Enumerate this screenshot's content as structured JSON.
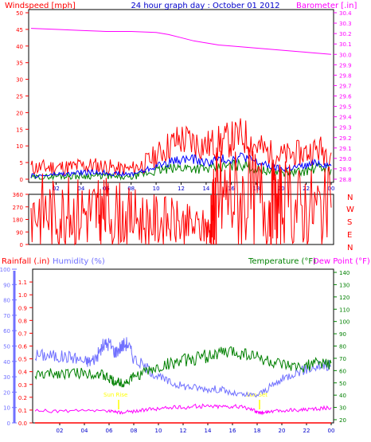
{
  "header": {
    "windspeed_label": "Windspeed [mph]",
    "graph_title": "24 hour graph day : October 01 2012",
    "barometer_label": "Barometer [.in]"
  },
  "middle": {
    "compass_letters": [
      "N",
      "W",
      "S",
      "E",
      "N"
    ]
  },
  "bottom": {
    "rainfall_label": "Rainfall (.in)",
    "humidity_label": "Humidity (%)",
    "temperature_label": "Temperature (°F)",
    "dewpoint_label": "Dew Point (°F)",
    "sun_rise_label": "Sun Rise",
    "sun_set_label": "Sun Set"
  },
  "colors": {
    "frame": "#000000",
    "wind_gust": "#ff0000",
    "wind_avg": "#008000",
    "wind_dir": "#ff0000",
    "barometer": "#ff00ff",
    "title": "#0000cc",
    "humidity": "#7070ff",
    "temperature": "#008000",
    "rain": "#ff0000",
    "dewpoint": "#ff00ff",
    "sun": "#ffff00"
  },
  "chart_data": [
    {
      "type": "line",
      "title": "24 hour graph day : October 01 2012",
      "x_ticks": [
        "02",
        "04",
        "06",
        "08",
        "10",
        "12",
        "14",
        "16",
        "18",
        "20",
        "22",
        "00"
      ],
      "left_axis": {
        "label": "Windspeed [mph]",
        "range": [
          0,
          50
        ],
        "ticks": [
          0,
          5,
          10,
          15,
          20,
          25,
          30,
          35,
          40,
          45,
          50
        ]
      },
      "right_axis": {
        "label": "Barometer [.in]",
        "range": [
          28.8,
          30.4
        ],
        "ticks": [
          28.8,
          28.9,
          29.0,
          29.1,
          29.2,
          29.3,
          29.4,
          29.5,
          29.6,
          29.7,
          29.8,
          29.9,
          30.0,
          30.1,
          30.2,
          30.3,
          30.4
        ]
      },
      "series": [
        {
          "name": "Windspeed [mph]",
          "axis": "left",
          "color": "#ff0000",
          "x": [
            0,
            1,
            2,
            3,
            4,
            5,
            6,
            7,
            8,
            9,
            10,
            11,
            12,
            13,
            14,
            15,
            16,
            17,
            18,
            19,
            20,
            21,
            22,
            23,
            24
          ],
          "y": [
            3.5,
            3.5,
            3.6,
            3.5,
            4,
            4,
            3.8,
            3,
            3,
            4.5,
            7,
            10,
            12,
            11,
            10,
            11,
            12,
            13,
            10,
            8,
            7,
            7.5,
            8,
            9,
            8
          ]
        },
        {
          "x": [
            0,
            1,
            2,
            3,
            4,
            5,
            6,
            7,
            8,
            9,
            10,
            11,
            12,
            13,
            14,
            15,
            16,
            17,
            18,
            19,
            20,
            21,
            22,
            23,
            24
          ],
          "y": [
            1,
            1,
            1.5,
            1.5,
            2,
            2,
            2,
            1.5,
            1.5,
            2.5,
            4,
            5,
            6,
            6,
            5,
            6,
            6,
            7,
            5,
            4,
            3,
            3.5,
            4,
            5,
            4
          ]
        },
        {
          "x": [
            0,
            1,
            2,
            3,
            4,
            5,
            6,
            7,
            8,
            9,
            10,
            11,
            12,
            13,
            14,
            15,
            16,
            17,
            18,
            19,
            20,
            21,
            22,
            23,
            24
          ],
          "y": [
            0.5,
            0.5,
            1,
            1,
            1,
            1,
            1,
            0.5,
            0.5,
            1.5,
            2.5,
            3,
            3.5,
            3.5,
            3,
            3.5,
            4,
            4.5,
            3,
            2.5,
            2,
            2,
            2.5,
            3.5,
            3
          ]
        },
        {
          "name": "Barometer [.in]",
          "axis": "right",
          "color": "#ff00ff",
          "x": [
            0,
            2,
            4,
            6,
            8,
            10,
            11,
            12,
            13,
            14,
            15,
            16,
            18,
            20,
            22,
            24
          ],
          "y": [
            30.25,
            30.24,
            30.23,
            30.22,
            30.22,
            30.21,
            30.19,
            30.16,
            30.13,
            30.11,
            30.09,
            30.08,
            30.06,
            30.04,
            30.02,
            30.0
          ]
        }
      ]
    },
    {
      "type": "line",
      "y_ticks": [
        0,
        90,
        180,
        270,
        360
      ],
      "right_labels": [
        "N",
        "W",
        "S",
        "E",
        "N"
      ],
      "range": [
        0,
        360
      ],
      "series": [
        {
          "color": "#ff0000",
          "x": [
            0,
            1,
            2,
            3,
            4,
            5,
            5.5,
            6,
            7,
            8,
            9,
            10,
            11,
            12,
            13,
            14,
            14.4,
            14.6,
            15,
            16,
            17,
            18,
            19,
            19.5,
            20,
            21,
            22,
            23,
            24
          ],
          "y": [
            250,
            250,
            225,
            230,
            240,
            240,
            210,
            230,
            215,
            195,
            180,
            175,
            160,
            145,
            130,
            115,
            95,
            350,
            345,
            350,
            330,
            330,
            320,
            280,
            285,
            270,
            270,
            265,
            265
          ]
        }
      ]
    },
    {
      "type": "line",
      "x_ticks": [
        "02",
        "04",
        "06",
        "08",
        "10",
        "12",
        "14",
        "16",
        "18",
        "20",
        "22",
        "00"
      ],
      "left_axis": {
        "label": "Rainfall (.in)",
        "range": [
          0,
          1.2
        ],
        "ticks": [
          0,
          0.1,
          0.2,
          0.3,
          0.4,
          0.5,
          0.6,
          0.7,
          0.8,
          0.9,
          1.0,
          1.1
        ]
      },
      "humidity_axis": {
        "label": "Humidity (%)",
        "range": [
          0,
          100
        ],
        "ticks": [
          0,
          10,
          20,
          30,
          40,
          50,
          60,
          70,
          80,
          90,
          100
        ]
      },
      "right_axis": {
        "label": "Temperature (°F)",
        "range": [
          20,
          140
        ],
        "ticks": [
          20,
          30,
          40,
          50,
          60,
          70,
          80,
          90,
          100,
          110,
          120,
          130,
          140
        ]
      },
      "sun": {
        "rise_hour": 7,
        "set_hour": 18.5
      },
      "series": [
        {
          "name": "Humidity (%)",
          "axis": "humidity",
          "color": "#7070ff",
          "x": [
            0,
            1,
            2,
            3,
            4,
            4.5,
            5,
            5.5,
            6,
            6.5,
            7,
            7.5,
            8,
            9,
            10,
            11,
            12,
            13,
            14,
            15,
            16,
            17,
            18,
            19,
            20,
            21,
            22,
            23,
            24
          ],
          "y": [
            44,
            44,
            43,
            43,
            40,
            40,
            43,
            50,
            52,
            46,
            50,
            52,
            42,
            36,
            30,
            26,
            24,
            23,
            22,
            22,
            19,
            18,
            18,
            23,
            28,
            33,
            35,
            37,
            37
          ]
        },
        {
          "name": "Temperature (°F)",
          "axis": "right",
          "color": "#008000",
          "x": [
            0,
            1,
            2,
            3,
            4,
            5,
            5.5,
            6,
            6.5,
            7,
            7.5,
            8,
            9,
            10,
            11,
            12,
            13,
            14,
            15,
            16,
            17,
            18,
            19,
            20,
            21,
            22,
            23,
            24
          ],
          "y": [
            56,
            57,
            58,
            58,
            58,
            58,
            56,
            53,
            51,
            50,
            51,
            55,
            59,
            62,
            66,
            68,
            70,
            72,
            74,
            75,
            74,
            71,
            67,
            64,
            62,
            64,
            66,
            66
          ]
        },
        {
          "name": "Dew Point (°F)",
          "axis": "right",
          "color": "#ff00ff",
          "x": [
            0,
            2,
            4,
            6,
            6.5,
            7,
            8,
            9,
            10,
            11,
            12,
            13,
            14,
            15,
            16,
            17,
            17.8,
            18,
            18.5,
            19,
            20,
            21,
            22,
            23,
            24
          ],
          "y": [
            27,
            27,
            27,
            27,
            26,
            26,
            27,
            28,
            29,
            30,
            30,
            31,
            31,
            31,
            31,
            30,
            28,
            26,
            26,
            27,
            27,
            28,
            28,
            29,
            30
          ]
        },
        {
          "name": "Rainfall (.in)",
          "axis": "left",
          "color": "#ff0000",
          "x": [
            0,
            24
          ],
          "y": [
            0,
            0
          ]
        }
      ]
    }
  ]
}
